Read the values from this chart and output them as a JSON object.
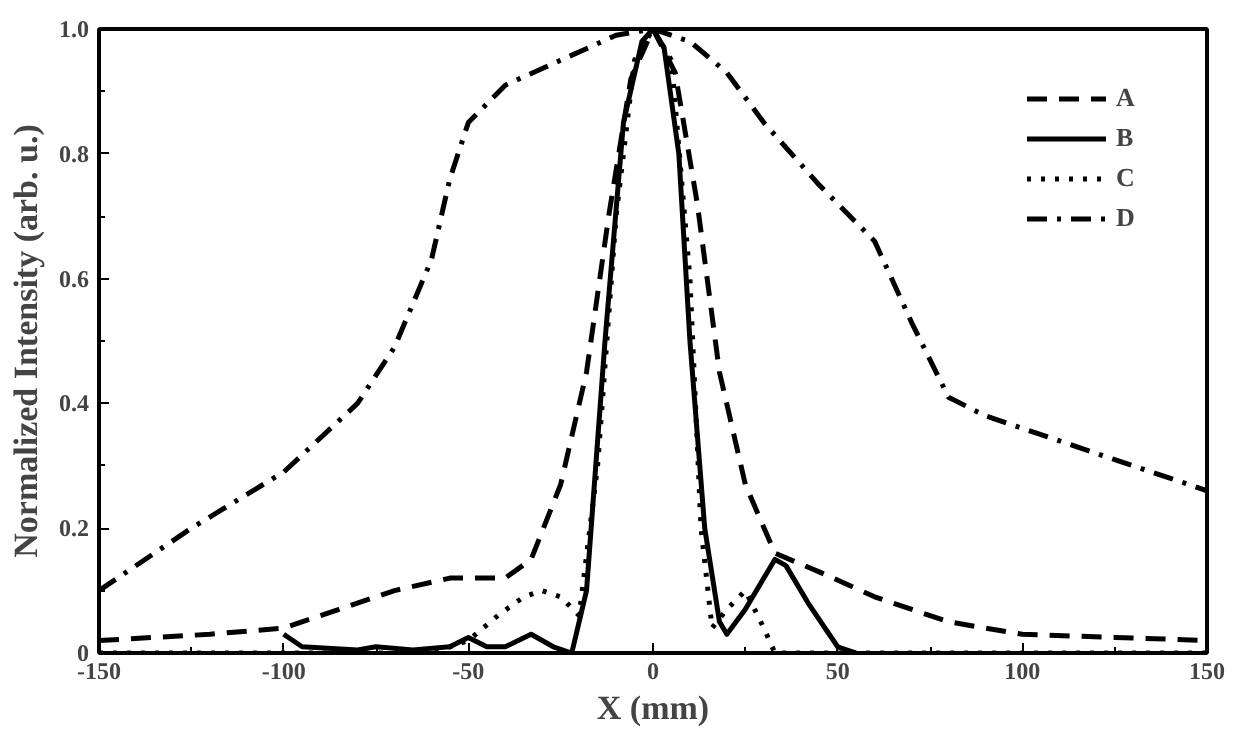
{
  "chart_data": {
    "type": "line",
    "xlabel": "X (mm)",
    "ylabel": "Normalized Intensity (arb. u.)",
    "xlim": [
      -150,
      150
    ],
    "ylim": [
      0,
      1.0
    ],
    "xticks": [
      -150,
      {
        "value": -125,
        "label": null
      },
      -100,
      {
        "value": -75,
        "label": null
      },
      -50,
      {
        "value": -25,
        "label": null
      },
      0,
      {
        "value": 25,
        "label": null
      },
      50,
      {
        "value": 75,
        "label": null
      },
      100,
      {
        "value": 125,
        "label": null
      },
      150
    ],
    "yticks": [
      0,
      {
        "value": 0.1,
        "label": null
      },
      0.2,
      {
        "value": 0.3,
        "label": null
      },
      0.4,
      {
        "value": 0.5,
        "label": null
      },
      0.6,
      {
        "value": 0.7,
        "label": null
      },
      0.8,
      {
        "value": 0.9,
        "label": null
      },
      {
        "value": 1.0,
        "label": "1.0"
      }
    ],
    "grid": false,
    "legend": "top right",
    "series": [
      {
        "name": "A",
        "color": "#000000",
        "line_style": "dashed",
        "x": [
          -150,
          -120,
          -100,
          -85,
          -70,
          -55,
          -40,
          -33,
          -25,
          -18,
          -12,
          -6,
          0,
          6,
          12,
          18,
          25,
          33,
          45,
          60,
          80,
          100,
          125,
          150
        ],
        "values": [
          0.02,
          0.03,
          0.04,
          0.07,
          0.1,
          0.12,
          0.12,
          0.15,
          0.27,
          0.45,
          0.7,
          0.92,
          1.0,
          0.93,
          0.72,
          0.45,
          0.27,
          0.16,
          0.13,
          0.09,
          0.05,
          0.03,
          0.025,
          0.02
        ]
      },
      {
        "name": "B",
        "color": "#000000",
        "line_style": "solid",
        "x": [
          -100,
          -95,
          -80,
          -75,
          -65,
          -55,
          -50,
          -45,
          -40,
          -33,
          -27,
          -22,
          -18,
          -13,
          -8,
          -3,
          0,
          3,
          7,
          10,
          14,
          18,
          20,
          25,
          33,
          36,
          42,
          50,
          55
        ],
        "values": [
          0.03,
          0.01,
          0.005,
          0.01,
          0.005,
          0.01,
          0.025,
          0.01,
          0.01,
          0.03,
          0.01,
          0.0,
          0.1,
          0.5,
          0.85,
          0.98,
          1.0,
          0.97,
          0.8,
          0.5,
          0.2,
          0.05,
          0.03,
          0.07,
          0.15,
          0.14,
          0.08,
          0.01,
          0.0
        ]
      },
      {
        "name": "C",
        "color": "#000000",
        "line_style": "dotted",
        "x": [
          -150,
          -60,
          -50,
          -42,
          -35,
          -30,
          -25,
          -20,
          -15,
          -10,
          -5,
          0,
          5,
          10,
          13,
          16,
          20,
          25,
          30,
          33,
          150
        ],
        "values": [
          0.0,
          0.0,
          0.02,
          0.06,
          0.09,
          0.1,
          0.09,
          0.06,
          0.3,
          0.7,
          0.95,
          1.0,
          0.95,
          0.6,
          0.2,
          0.04,
          0.07,
          0.1,
          0.04,
          0.0,
          0.0
        ]
      },
      {
        "name": "D",
        "color": "#000000",
        "line_style": "dashdot",
        "x": [
          -150,
          -125,
          -100,
          -80,
          -70,
          -60,
          -55,
          -50,
          -40,
          -25,
          -10,
          0,
          10,
          20,
          30,
          45,
          60,
          70,
          80,
          90,
          100,
          125,
          150
        ],
        "values": [
          0.1,
          0.2,
          0.29,
          0.4,
          0.49,
          0.63,
          0.76,
          0.85,
          0.91,
          0.95,
          0.99,
          1.0,
          0.98,
          0.93,
          0.85,
          0.75,
          0.66,
          0.53,
          0.41,
          0.38,
          0.36,
          0.31,
          0.26
        ]
      }
    ]
  }
}
